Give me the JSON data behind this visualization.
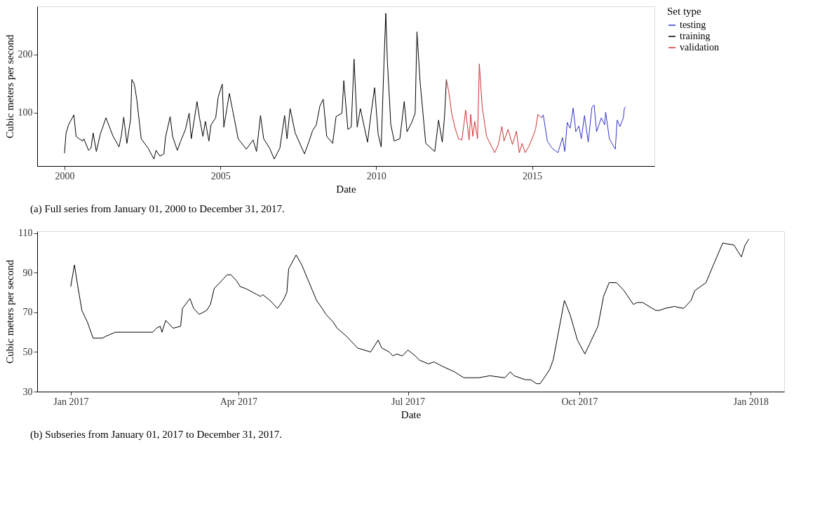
{
  "chart_data": [
    {
      "type": "line",
      "xlabel": "Date",
      "ylabel": "Cubic meters per second",
      "legend_title": "Set type",
      "legend": "right",
      "grid": false,
      "xlim": [
        "1999-02-15",
        "2018-12-05"
      ],
      "xticks": [
        "2000",
        "2005",
        "2010",
        "2015"
      ],
      "ylim": [
        8,
        283
      ],
      "yticks": [
        100,
        200
      ],
      "annotations": [
        "(a) Full series from January 01, 2000 to December 31, 2017."
      ],
      "series": [
        {
          "name": "testing",
          "color": "#3333cc",
          "x": [
            "2015-04-20",
            "2015-05-12",
            "2015-06-29",
            "2015-08-22",
            "2015-10-31",
            "2015-12-24",
            "2016-01-19",
            "2016-02-17",
            "2016-03-22",
            "2016-04-27",
            "2016-05-27",
            "2016-07-02",
            "2016-07-31",
            "2016-09-06",
            "2016-10-20",
            "2016-12-02",
            "2016-12-28",
            "2017-01-26",
            "2017-03-22",
            "2017-05-01",
            "2017-05-12",
            "2017-06-25",
            "2017-09-02",
            "2017-09-24",
            "2017-10-27",
            "2017-12-06",
            "2017-12-17",
            "2017-12-31"
          ],
          "values": [
            91,
            96,
            51,
            39,
            31,
            57,
            33,
            83,
            73,
            108,
            67,
            77,
            55,
            95,
            49,
            109,
            113,
            67,
            91,
            79,
            101,
            55,
            37,
            87,
            76,
            91,
            107,
            110
          ]
        },
        {
          "name": "training",
          "color": "#000000",
          "x": [
            "2000-01-01",
            "2000-01-19",
            "2000-02-17",
            "2000-04-20",
            "2000-05-16",
            "2000-06-21",
            "2000-07-31",
            "2000-08-15",
            "2000-10-09",
            "2000-11-07",
            "2000-12-02",
            "2001-01-08",
            "2001-02-24",
            "2001-05-01",
            "2001-07-24",
            "2001-10-01",
            "2001-10-27",
            "2001-11-25",
            "2002-01-01",
            "2002-02-14",
            "2002-02-28",
            "2002-03-29",
            "2002-04-27",
            "2002-06-18",
            "2002-09-06",
            "2002-11-14",
            "2002-12-09",
            "2003-01-23",
            "2003-03-11",
            "2003-03-29",
            "2003-05-23",
            "2003-06-21",
            "2003-08-15",
            "2003-09-24",
            "2003-11-18",
            "2004-01-01",
            "2004-01-26",
            "2004-04-02",
            "2004-05-01",
            "2004-06-10",
            "2004-07-09",
            "2004-08-19",
            "2004-09-13",
            "2004-11-07",
            "2004-12-06",
            "2005-01-23",
            "2005-02-10",
            "2005-04-16",
            "2005-05-31",
            "2005-07-28",
            "2005-10-31",
            "2006-01-19",
            "2006-02-28",
            "2006-04-16",
            "2006-05-23",
            "2006-07-31",
            "2006-09-24",
            "2006-11-29",
            "2007-01-23",
            "2007-02-21",
            "2007-03-29",
            "2007-05-27",
            "2007-09-13",
            "2007-11-07",
            "2007-12-17",
            "2008-01-30",
            "2008-03-11",
            "2008-04-20",
            "2008-05-31",
            "2008-08-08",
            "2008-09-17",
            "2008-11-25",
            "2008-12-17",
            "2009-02-03",
            "2009-03-14",
            "2009-04-16",
            "2009-05-23",
            "2009-06-29",
            "2009-09-21",
            "2009-10-31",
            "2009-12-13",
            "2010-01-23",
            "2010-02-28",
            "2010-04-02",
            "2010-04-23",
            "2010-05-12",
            "2010-06-21",
            "2010-07-31",
            "2010-10-05",
            "2010-11-25",
            "2010-12-28",
            "2011-02-21",
            "2011-04-02",
            "2011-04-23",
            "2011-05-31",
            "2011-08-04",
            "2011-11-18",
            "2012-01-01",
            "2012-02-14",
            "2012-03-11",
            "2012-04-02"
          ],
          "values": [
            30,
            64,
            79,
            96,
            59,
            55,
            51,
            55,
            35,
            39,
            65,
            33,
            63,
            91,
            59,
            41,
            59,
            92,
            47,
            89,
            157,
            149,
            123,
            55,
            39,
            20,
            35,
            25,
            29,
            57,
            93,
            59,
            35,
            51,
            71,
            99,
            55,
            119,
            91,
            59,
            85,
            51,
            79,
            91,
            127,
            149,
            75,
            133,
            99,
            55,
            37,
            53,
            33,
            95,
            55,
            39,
            20,
            39,
            95,
            55,
            107,
            65,
            29,
            51,
            69,
            79,
            111,
            123,
            59,
            47,
            93,
            99,
            155,
            71,
            75,
            192,
            75,
            107,
            49,
            97,
            143,
            63,
            41,
            187,
            271,
            187,
            79,
            51,
            55,
            119,
            67,
            83,
            99,
            239,
            151,
            47,
            33,
            87,
            49,
            93,
            157
          ]
        },
        {
          "name": "validation",
          "color": "#cc3333",
          "x": [
            "2012-04-02",
            "2012-05-01",
            "2012-06-03",
            "2012-07-13",
            "2012-08-22",
            "2012-10-01",
            "2012-11-14",
            "2012-12-24",
            "2013-01-12",
            "2013-02-06",
            "2013-02-28",
            "2013-04-02",
            "2013-04-23",
            "2013-05-27",
            "2013-07-17",
            "2013-10-20",
            "2013-12-02",
            "2014-01-12",
            "2014-02-06",
            "2014-03-25",
            "2014-05-16",
            "2014-07-02",
            "2014-08-04",
            "2014-09-06",
            "2014-10-12",
            "2014-11-22",
            "2015-01-01",
            "2015-02-10",
            "2015-03-11",
            "2015-04-20"
          ],
          "values": [
            157,
            135,
            99,
            73,
            55,
            53,
            104,
            53,
            97,
            59,
            85,
            55,
            184,
            109,
            59,
            31,
            45,
            76,
            51,
            71,
            45,
            68,
            31,
            47,
            31,
            41,
            55,
            71,
            97,
            91
          ]
        }
      ]
    },
    {
      "type": "line",
      "xlabel": "Date",
      "ylabel": "Cubic meters per second",
      "grid": false,
      "xlim": [
        "2016-12-14",
        "2018-01-19"
      ],
      "xticks": [
        {
          "value": "2017-01",
          "label": "Jan 2017"
        },
        {
          "value": "2017-04",
          "label": "Apr 2017"
        },
        {
          "value": "2017-07",
          "label": "Jul 2017"
        },
        {
          "value": "2017-10",
          "label": "Oct 2017"
        },
        {
          "value": "2018-01",
          "label": "Jan 2018"
        }
      ],
      "ylim": [
        30,
        111
      ],
      "yticks": [
        30,
        50,
        70,
        90,
        110
      ],
      "annotations": [
        "(b) Subseries from January 01, 2017 to December 31, 2017."
      ],
      "series": [
        {
          "color": "#000000",
          "x": [
            "2017-01-01",
            "2017-01-03",
            "2017-01-05",
            "2017-01-07",
            "2017-01-10",
            "2017-01-13",
            "2017-01-18",
            "2017-01-20",
            "2017-01-25",
            "2017-01-28",
            "2017-02-08",
            "2017-02-14",
            "2017-02-16",
            "2017-02-18",
            "2017-02-19",
            "2017-02-21",
            "2017-02-25",
            "2017-03-01",
            "2017-03-02",
            "2017-03-06",
            "2017-03-08",
            "2017-03-11",
            "2017-03-15",
            "2017-03-17",
            "2017-03-19",
            "2017-03-23",
            "2017-03-26",
            "2017-03-28",
            "2017-03-31",
            "2017-04-02",
            "2017-04-05",
            "2017-04-11",
            "2017-04-13",
            "2017-04-14",
            "2017-04-18",
            "2017-04-20",
            "2017-04-22",
            "2017-04-25",
            "2017-04-27",
            "2017-04-28",
            "2017-05-02",
            "2017-05-05",
            "2017-05-09",
            "2017-05-13",
            "2017-05-16",
            "2017-05-18",
            "2017-05-22",
            "2017-05-24",
            "2017-05-29",
            "2017-06-02",
            "2017-06-04",
            "2017-06-11",
            "2017-06-15",
            "2017-06-17",
            "2017-06-21",
            "2017-06-23",
            "2017-06-25",
            "2017-06-28",
            "2017-07-01",
            "2017-07-05",
            "2017-07-07",
            "2017-07-12",
            "2017-07-15",
            "2017-07-19",
            "2017-07-26",
            "2017-07-31",
            "2017-08-04",
            "2017-08-08",
            "2017-08-14",
            "2017-08-22",
            "2017-08-25",
            "2017-08-27",
            "2017-09-02",
            "2017-09-05",
            "2017-09-08",
            "2017-09-10",
            "2017-09-15",
            "2017-09-17",
            "2017-09-21",
            "2017-09-23",
            "2017-09-26",
            "2017-09-30",
            "2017-10-04",
            "2017-10-09",
            "2017-10-11",
            "2017-10-14",
            "2017-10-17",
            "2017-10-21",
            "2017-10-25",
            "2017-10-30",
            "2017-11-01",
            "2017-11-04",
            "2017-11-11",
            "2017-11-13",
            "2017-11-16",
            "2017-11-21",
            "2017-11-26",
            "2017-11-30",
            "2017-12-02",
            "2017-12-08",
            "2017-12-12",
            "2017-12-17",
            "2017-12-23",
            "2017-12-27",
            "2017-12-29",
            "2017-12-31"
          ],
          "values": [
            83,
            94,
            82,
            71,
            65,
            57,
            57,
            58,
            60,
            60,
            60,
            60,
            62,
            63,
            60,
            66,
            62,
            63,
            72,
            77,
            72,
            69,
            71,
            74,
            82,
            86,
            89,
            89,
            86,
            83,
            82,
            79,
            78,
            79,
            76,
            74,
            72,
            76,
            80,
            92,
            99,
            94,
            85,
            76,
            72,
            69,
            65,
            62,
            58,
            54,
            52,
            50,
            56,
            52,
            50,
            48,
            49,
            48,
            51,
            48,
            46,
            44,
            45,
            43,
            40,
            37,
            37,
            37,
            38,
            37,
            40,
            38,
            36,
            36,
            34,
            34,
            41,
            46,
            66,
            76,
            69,
            56,
            49,
            59,
            63,
            78,
            85,
            85,
            81,
            74,
            75,
            75,
            71,
            71,
            72,
            73,
            72,
            76,
            81,
            85,
            94,
            105,
            104,
            98,
            104,
            107
          ]
        }
      ]
    }
  ]
}
